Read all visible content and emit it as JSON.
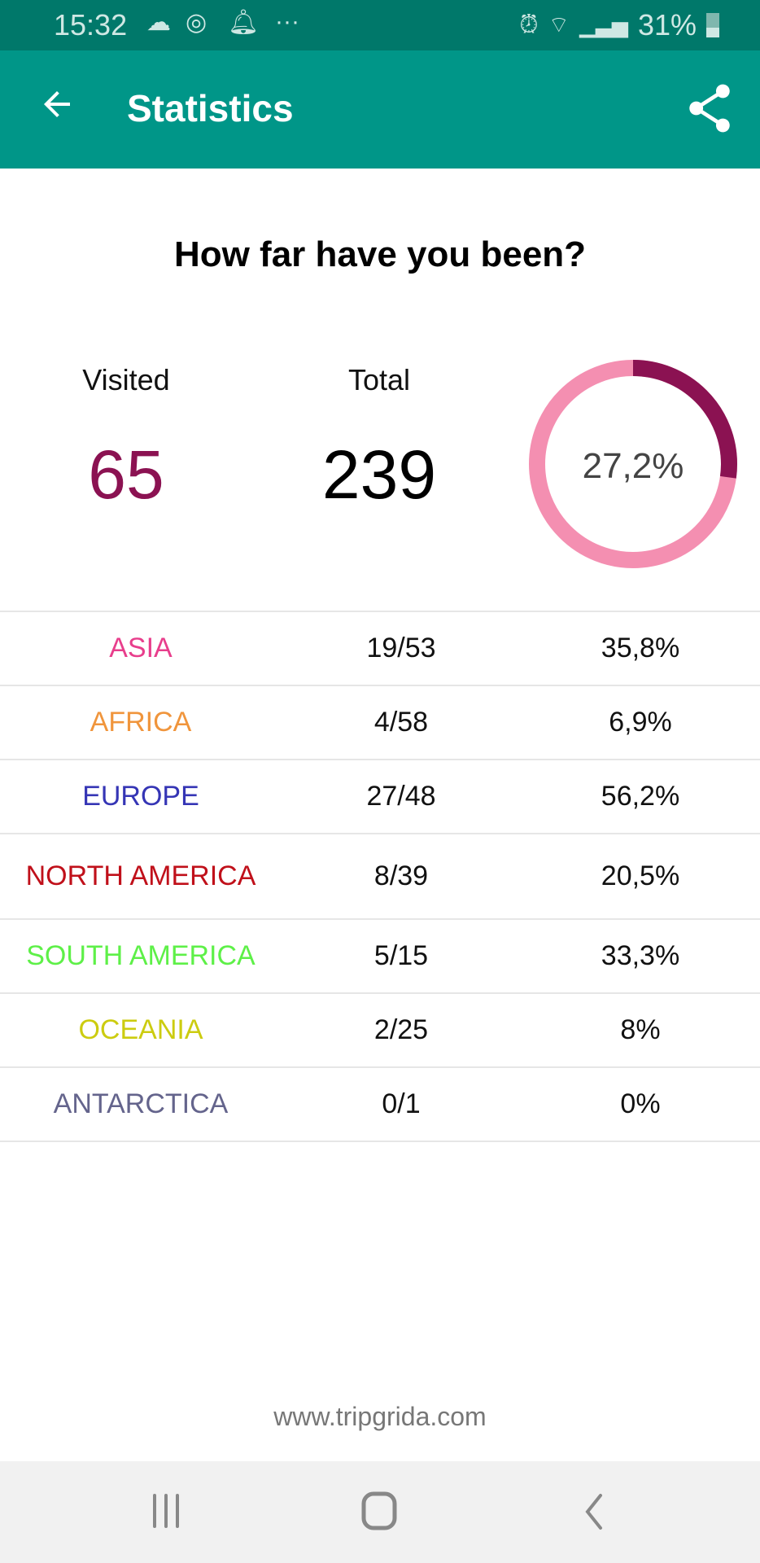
{
  "status_bar": {
    "time": "15:32",
    "battery": "31%",
    "icons": [
      "cloud-icon",
      "instagram-icon",
      "bell-icon",
      "more-icon",
      "alarm-icon",
      "wifi-icon",
      "signal-icon",
      "battery-icon"
    ]
  },
  "app_bar": {
    "title": "Statistics",
    "back_icon": "arrow-left-icon",
    "share_icon": "share-icon",
    "background": "#009688"
  },
  "heading": "How far have you been?",
  "summary": {
    "visited_label": "Visited",
    "visited_value": "65",
    "total_label": "Total",
    "total_value": "239",
    "percent_label": "27,2%",
    "percent_fraction": 0.272,
    "visited_color": "#8b1252",
    "ring_fill_color": "#8b1252",
    "ring_track_color": "#f48fb1"
  },
  "continents": [
    {
      "name": "ASIA",
      "fraction": "19/53",
      "percent": "35,8%",
      "color": "#e83e8c"
    },
    {
      "name": "AFRICA",
      "fraction": "4/58",
      "percent": "6,9%",
      "color": "#f0953c"
    },
    {
      "name": "EUROPE",
      "fraction": "27/48",
      "percent": "56,2%",
      "color": "#3535b5"
    },
    {
      "name": "NORTH AMERICA",
      "fraction": "8/39",
      "percent": "20,5%",
      "color": "#c0101a"
    },
    {
      "name": "SOUTH AMERICA",
      "fraction": "5/15",
      "percent": "33,3%",
      "color": "#5ef048"
    },
    {
      "name": "OCEANIA",
      "fraction": "2/25",
      "percent": "8%",
      "color": "#cccc10"
    },
    {
      "name": "ANTARCTICA",
      "fraction": "0/1",
      "percent": "0%",
      "color": "#64648c"
    }
  ],
  "footer": "www.tripgrida.com",
  "nav_bar": {
    "icons": [
      "recents-icon",
      "home-icon",
      "back-icon"
    ]
  }
}
